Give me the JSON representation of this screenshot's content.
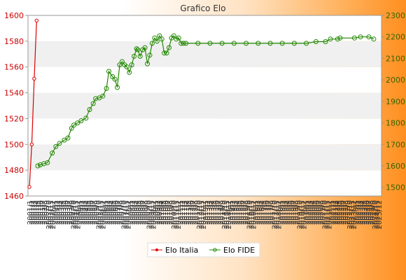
{
  "chart_data": {
    "type": "line",
    "title": "Grafico Elo",
    "xlabel": "",
    "ylabel": "",
    "legend_position": "bottom",
    "grid": "horizontal-bands",
    "y_left": {
      "min": 1460,
      "max": 1600,
      "ticks": [
        1460,
        1480,
        1500,
        1520,
        1540,
        1560,
        1580,
        1600
      ],
      "color": "#cc0000"
    },
    "y_right": {
      "min": 1460,
      "max": 2300,
      "ticks": [
        1500,
        1600,
        1700,
        1800,
        1900,
        2000,
        2100,
        2200,
        2300
      ],
      "color": "#336600"
    },
    "x_first_label": "2001/1",
    "x_last_label": "2025/12",
    "x_count": 168,
    "series": [
      {
        "name": "Elo Italia",
        "axis": "left",
        "color": "#dd0000",
        "points": [
          [
            0,
            1467
          ],
          [
            2,
            1500
          ],
          [
            4,
            1551
          ],
          [
            6,
            1596
          ]
        ]
      },
      {
        "name": "Elo FIDE",
        "axis": "right",
        "color": "#228800",
        "points": [
          [
            7,
            1600
          ],
          [
            9,
            1605
          ],
          [
            12,
            1610
          ],
          [
            15,
            1615
          ],
          [
            19,
            1660
          ],
          [
            22,
            1690
          ],
          [
            25,
            1705
          ],
          [
            29,
            1720
          ],
          [
            32,
            1730
          ],
          [
            35,
            1775
          ],
          [
            37,
            1790
          ],
          [
            40,
            1800
          ],
          [
            43,
            1810
          ],
          [
            47,
            1822
          ],
          [
            50,
            1862
          ],
          [
            53,
            1890
          ],
          [
            55,
            1913
          ],
          [
            58,
            1916
          ],
          [
            61,
            1925
          ],
          [
            64,
            1960
          ],
          [
            66,
            2040
          ],
          [
            69,
            2015
          ],
          [
            71,
            2003
          ],
          [
            73,
            1965
          ],
          [
            75,
            2070
          ],
          [
            77,
            2085
          ],
          [
            79,
            2070
          ],
          [
            81,
            2060
          ],
          [
            83,
            2035
          ],
          [
            85,
            2070
          ],
          [
            87,
            2110
          ],
          [
            89,
            2145
          ],
          [
            90,
            2140
          ],
          [
            92,
            2110
          ],
          [
            94,
            2140
          ],
          [
            96,
            2150
          ],
          [
            98,
            2075
          ],
          [
            100,
            2115
          ],
          [
            102,
            2170
          ],
          [
            104,
            2195
          ],
          [
            106,
            2180
          ],
          [
            108,
            2205
          ],
          [
            110,
            2190
          ],
          [
            112,
            2125
          ],
          [
            114,
            2125
          ],
          [
            116,
            2150
          ],
          [
            118,
            2195
          ],
          [
            120,
            2205
          ],
          [
            122,
            2190
          ],
          [
            124,
            2195
          ],
          [
            126,
            2170
          ],
          [
            128,
            2170
          ],
          [
            130,
            2170
          ],
          [
            140,
            2170
          ],
          [
            150,
            2170
          ],
          [
            160,
            2170
          ],
          [
            170,
            2170
          ],
          [
            180,
            2170
          ],
          [
            190,
            2170
          ],
          [
            200,
            2170
          ],
          [
            210,
            2170
          ],
          [
            220,
            2170
          ],
          [
            230,
            2170
          ],
          [
            238,
            2178
          ],
          [
            246,
            2178
          ],
          [
            250,
            2190
          ],
          [
            256,
            2190
          ],
          [
            258,
            2195
          ],
          [
            270,
            2195
          ],
          [
            275,
            2200
          ],
          [
            282,
            2200
          ],
          [
            286,
            2190
          ]
        ]
      }
    ]
  }
}
